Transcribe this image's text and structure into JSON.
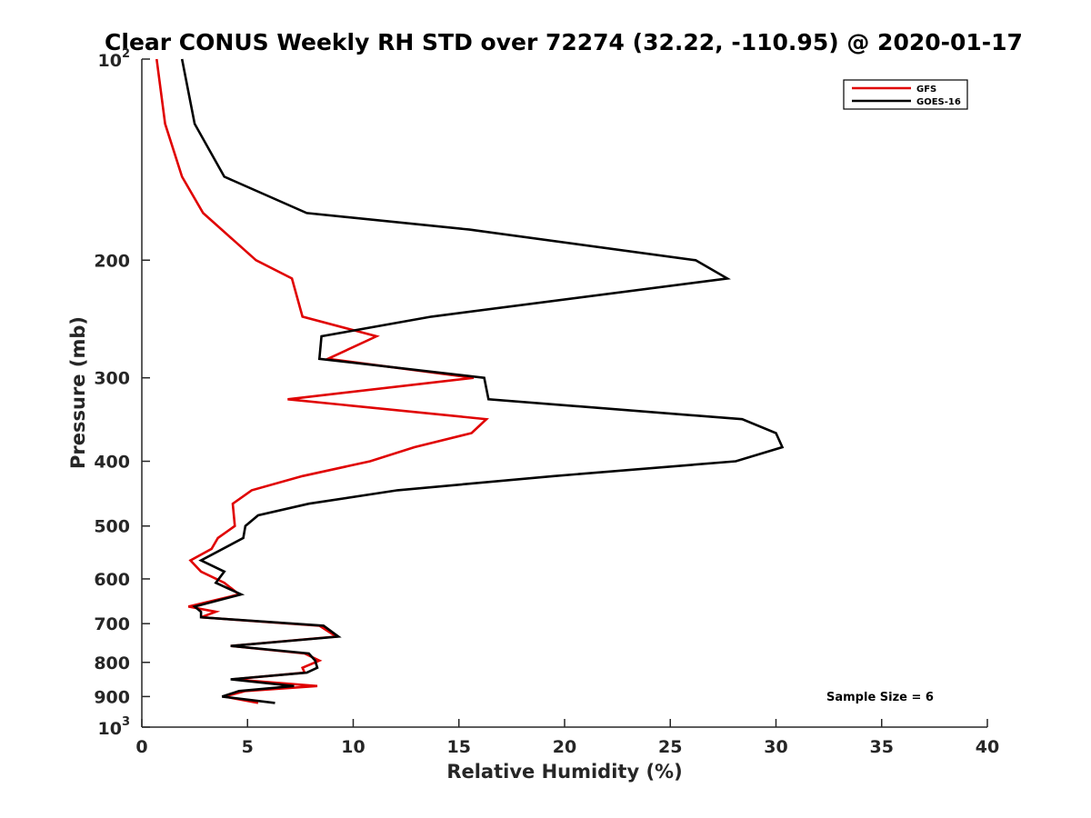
{
  "chart_data": {
    "type": "line",
    "title": "Clear CONUS Weekly RH STD over 72274 (32.22, -110.95) @ 2020-01-17",
    "xlabel": "Relative Humidity (%)",
    "ylabel": "Pressure (mb)",
    "xlim": [
      0,
      40
    ],
    "ylim": [
      100,
      1000
    ],
    "y_scale": "log",
    "y_reversed": true,
    "grid": false,
    "legend_position": "top-right",
    "x_ticks": [
      "0",
      "5",
      "10",
      "15",
      "20",
      "25",
      "30",
      "35",
      "40"
    ],
    "y_ticks": [
      {
        "value": 100,
        "base": "10",
        "exp": "2"
      },
      {
        "value": 200,
        "label": "200"
      },
      {
        "value": 300,
        "label": "300"
      },
      {
        "value": 400,
        "label": "400"
      },
      {
        "value": 500,
        "label": "500"
      },
      {
        "value": 600,
        "label": "600"
      },
      {
        "value": 700,
        "label": "700"
      },
      {
        "value": 800,
        "label": "800"
      },
      {
        "value": 900,
        "label": "900"
      },
      {
        "value": 1000,
        "base": "10",
        "exp": "3"
      }
    ],
    "series": [
      {
        "name": "GFS",
        "color": "#e00000",
        "points": [
          [
            0.7,
            100
          ],
          [
            1.1,
            125
          ],
          [
            1.9,
            150
          ],
          [
            2.9,
            170
          ],
          [
            5.4,
            200
          ],
          [
            7.1,
            213
          ],
          [
            7.6,
            243
          ],
          [
            11.1,
            260
          ],
          [
            8.8,
            281
          ],
          [
            15.7,
            300
          ],
          [
            6.9,
            323
          ],
          [
            16.3,
            346
          ],
          [
            15.6,
            363
          ],
          [
            12.9,
            381
          ],
          [
            10.8,
            400
          ],
          [
            7.6,
            421
          ],
          [
            5.2,
            442
          ],
          [
            4.3,
            463
          ],
          [
            4.4,
            500
          ],
          [
            3.6,
            521
          ],
          [
            3.3,
            541
          ],
          [
            2.3,
            563
          ],
          [
            2.8,
            585
          ],
          [
            3.9,
            608
          ],
          [
            4.6,
            633
          ],
          [
            2.2,
            660
          ],
          [
            3.5,
            672
          ],
          [
            2.8,
            685
          ],
          [
            8.4,
            705
          ],
          [
            9.2,
            732
          ],
          [
            4.2,
            756
          ],
          [
            7.7,
            776
          ],
          [
            8.4,
            795
          ],
          [
            7.6,
            815
          ],
          [
            7.7,
            829
          ],
          [
            4.3,
            848
          ],
          [
            8.3,
            868
          ],
          [
            4.9,
            883
          ],
          [
            3.9,
            900
          ],
          [
            5.5,
            920
          ]
        ]
      },
      {
        "name": "GOES-16",
        "color": "#000000",
        "points": [
          [
            1.9,
            100
          ],
          [
            2.5,
            125
          ],
          [
            3.9,
            150
          ],
          [
            7.8,
            170
          ],
          [
            15.5,
            180
          ],
          [
            26.2,
            200
          ],
          [
            27.7,
            213
          ],
          [
            13.7,
            243
          ],
          [
            8.5,
            260
          ],
          [
            8.4,
            281
          ],
          [
            16.2,
            300
          ],
          [
            16.4,
            323
          ],
          [
            28.4,
            346
          ],
          [
            30.0,
            363
          ],
          [
            30.3,
            381
          ],
          [
            28.1,
            400
          ],
          [
            19.5,
            421
          ],
          [
            12.1,
            442
          ],
          [
            7.9,
            463
          ],
          [
            5.5,
            482
          ],
          [
            4.9,
            500
          ],
          [
            4.8,
            521
          ],
          [
            2.8,
            563
          ],
          [
            3.9,
            585
          ],
          [
            3.5,
            608
          ],
          [
            4.7,
            633
          ],
          [
            2.5,
            660
          ],
          [
            2.8,
            672
          ],
          [
            2.8,
            685
          ],
          [
            8.6,
            705
          ],
          [
            9.3,
            732
          ],
          [
            4.2,
            756
          ],
          [
            7.9,
            776
          ],
          [
            8.2,
            795
          ],
          [
            8.3,
            815
          ],
          [
            7.8,
            829
          ],
          [
            4.2,
            848
          ],
          [
            7.2,
            868
          ],
          [
            4.6,
            883
          ],
          [
            3.8,
            900
          ],
          [
            6.3,
            920
          ]
        ]
      }
    ],
    "annotation": "Sample Size = 6"
  }
}
